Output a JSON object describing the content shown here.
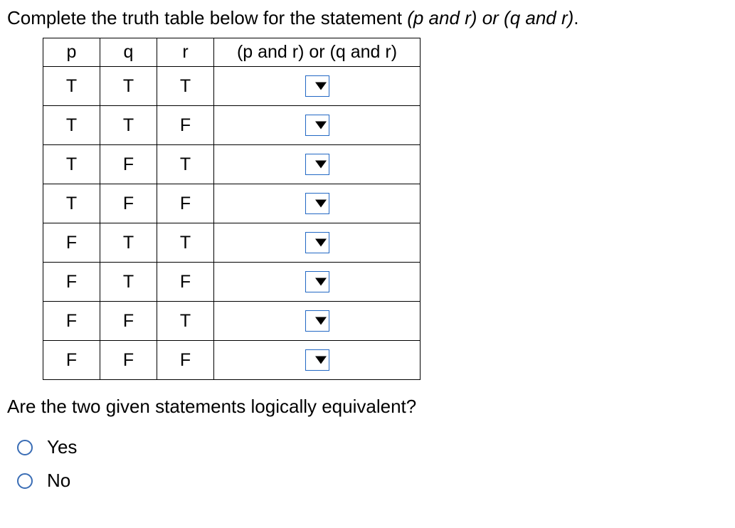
{
  "instruction_prefix": "Complete the truth table below for the statement ",
  "instruction_expr": "(p and r) or (q and r)",
  "instruction_suffix": ".",
  "table": {
    "headers": {
      "c1": "p",
      "c2": "q",
      "c3": "r",
      "c4": "(p and r) or (q and r)"
    },
    "rows": [
      {
        "p": "T",
        "q": "T",
        "r": "T"
      },
      {
        "p": "T",
        "q": "T",
        "r": "F"
      },
      {
        "p": "T",
        "q": "F",
        "r": "T"
      },
      {
        "p": "T",
        "q": "F",
        "r": "F"
      },
      {
        "p": "F",
        "q": "T",
        "r": "T"
      },
      {
        "p": "F",
        "q": "T",
        "r": "F"
      },
      {
        "p": "F",
        "q": "F",
        "r": "T"
      },
      {
        "p": "F",
        "q": "F",
        "r": "F"
      }
    ]
  },
  "question": "Are the two given statements logically equivalent?",
  "options": {
    "yes": "Yes",
    "no": "No"
  },
  "colors": {
    "dropdown_border": "#2268c4",
    "radio_border": "#3a6db5",
    "text": "#000000",
    "background": "#ffffff"
  }
}
